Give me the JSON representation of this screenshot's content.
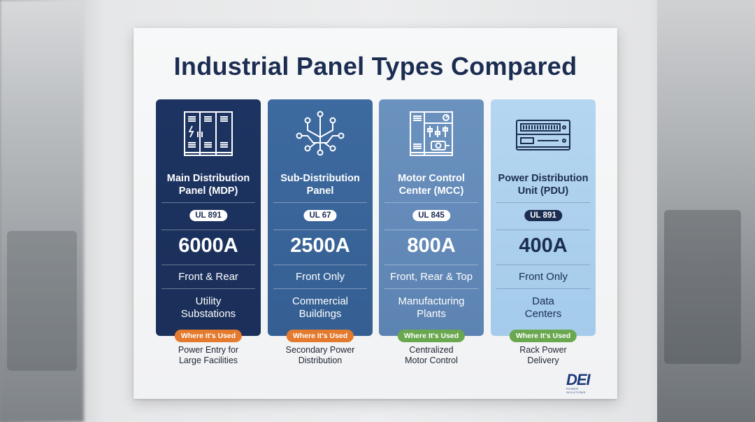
{
  "title": "Industrial Panel Types Compared",
  "colors": {
    "orange": "#e47a2e",
    "green": "#6aa84f",
    "navy": "#1c2d52"
  },
  "cards": [
    {
      "icon": "switchgear-cabinet-icon",
      "name_line1": "Main Distribution",
      "name_line2": "Panel (MDP)",
      "ul": "UL 891",
      "amperage": "6000A",
      "access": "Front & Rear",
      "use_line1": "Utility",
      "use_line2": "Substations",
      "where_label": "Where It's Used",
      "where_color": "#e47a2e",
      "desc_line1": "Power Entry for",
      "desc_line2": "Large Facilities"
    },
    {
      "icon": "branching-circuit-icon",
      "name_line1": "Sub-Distribution",
      "name_line2": "Panel",
      "ul": "UL 67",
      "amperage": "2500A",
      "access": "Front Only",
      "use_line1": "Commercial",
      "use_line2": "Buildings",
      "where_label": "Where It's Used",
      "where_color": "#e47a2e",
      "desc_line1": "Secondary Power",
      "desc_line2": "Distribution"
    },
    {
      "icon": "motor-control-cabinet-icon",
      "name_line1": "Motor Control",
      "name_line2": "Center (MCC)",
      "ul": "UL 845",
      "amperage": "800A",
      "access": "Front, Rear & Top",
      "use_line1": "Manufacturing",
      "use_line2": "Plants",
      "where_label": "Where It's Used",
      "where_color": "#6aa84f",
      "desc_line1": "Centralized",
      "desc_line2": "Motor Control"
    },
    {
      "icon": "rack-pdu-icon",
      "name_line1": "Power Distribution",
      "name_line2": "Unit (PDU)",
      "ul": "UL 891",
      "amperage": "400A",
      "access": "Front Only",
      "use_line1": "Data",
      "use_line2": "Centers",
      "where_label": "Where It's Used",
      "where_color": "#6aa84f",
      "desc_line1": "Rack Power",
      "desc_line2": "Delivery"
    }
  ],
  "logo": {
    "text": "DEI",
    "subtext": "POWER SOLUTIONS"
  }
}
